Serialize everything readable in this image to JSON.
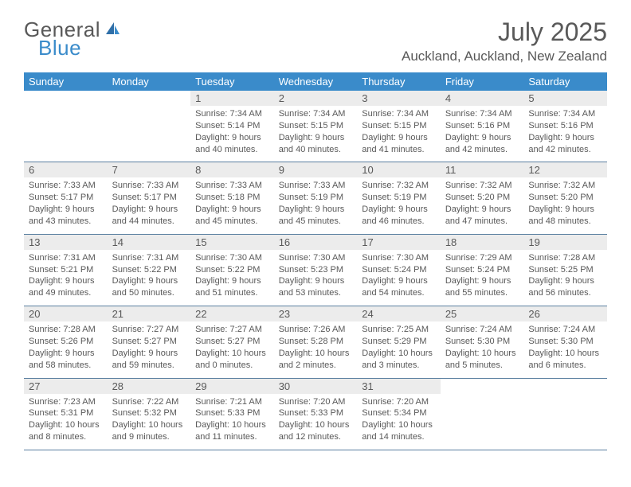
{
  "brand": {
    "part1": "General",
    "part2": "Blue"
  },
  "title": "July 2025",
  "location": "Auckland, Auckland, New Zealand",
  "colors": {
    "header_bg": "#3a8bca",
    "header_text": "#ffffff",
    "daynum_bg": "#ececec",
    "text": "#595959",
    "row_border": "#5a7fa0",
    "brand_blue": "#3a8bca",
    "brand_gray": "#595959",
    "page_bg": "#ffffff"
  },
  "weekdays": [
    "Sunday",
    "Monday",
    "Tuesday",
    "Wednesday",
    "Thursday",
    "Friday",
    "Saturday"
  ],
  "weeks": [
    [
      null,
      null,
      {
        "n": "1",
        "sr": "7:34 AM",
        "ss": "5:14 PM",
        "dl": "9 hours and 40 minutes."
      },
      {
        "n": "2",
        "sr": "7:34 AM",
        "ss": "5:15 PM",
        "dl": "9 hours and 40 minutes."
      },
      {
        "n": "3",
        "sr": "7:34 AM",
        "ss": "5:15 PM",
        "dl": "9 hours and 41 minutes."
      },
      {
        "n": "4",
        "sr": "7:34 AM",
        "ss": "5:16 PM",
        "dl": "9 hours and 42 minutes."
      },
      {
        "n": "5",
        "sr": "7:34 AM",
        "ss": "5:16 PM",
        "dl": "9 hours and 42 minutes."
      }
    ],
    [
      {
        "n": "6",
        "sr": "7:33 AM",
        "ss": "5:17 PM",
        "dl": "9 hours and 43 minutes."
      },
      {
        "n": "7",
        "sr": "7:33 AM",
        "ss": "5:17 PM",
        "dl": "9 hours and 44 minutes."
      },
      {
        "n": "8",
        "sr": "7:33 AM",
        "ss": "5:18 PM",
        "dl": "9 hours and 45 minutes."
      },
      {
        "n": "9",
        "sr": "7:33 AM",
        "ss": "5:19 PM",
        "dl": "9 hours and 45 minutes."
      },
      {
        "n": "10",
        "sr": "7:32 AM",
        "ss": "5:19 PM",
        "dl": "9 hours and 46 minutes."
      },
      {
        "n": "11",
        "sr": "7:32 AM",
        "ss": "5:20 PM",
        "dl": "9 hours and 47 minutes."
      },
      {
        "n": "12",
        "sr": "7:32 AM",
        "ss": "5:20 PM",
        "dl": "9 hours and 48 minutes."
      }
    ],
    [
      {
        "n": "13",
        "sr": "7:31 AM",
        "ss": "5:21 PM",
        "dl": "9 hours and 49 minutes."
      },
      {
        "n": "14",
        "sr": "7:31 AM",
        "ss": "5:22 PM",
        "dl": "9 hours and 50 minutes."
      },
      {
        "n": "15",
        "sr": "7:30 AM",
        "ss": "5:22 PM",
        "dl": "9 hours and 51 minutes."
      },
      {
        "n": "16",
        "sr": "7:30 AM",
        "ss": "5:23 PM",
        "dl": "9 hours and 53 minutes."
      },
      {
        "n": "17",
        "sr": "7:30 AM",
        "ss": "5:24 PM",
        "dl": "9 hours and 54 minutes."
      },
      {
        "n": "18",
        "sr": "7:29 AM",
        "ss": "5:24 PM",
        "dl": "9 hours and 55 minutes."
      },
      {
        "n": "19",
        "sr": "7:28 AM",
        "ss": "5:25 PM",
        "dl": "9 hours and 56 minutes."
      }
    ],
    [
      {
        "n": "20",
        "sr": "7:28 AM",
        "ss": "5:26 PM",
        "dl": "9 hours and 58 minutes."
      },
      {
        "n": "21",
        "sr": "7:27 AM",
        "ss": "5:27 PM",
        "dl": "9 hours and 59 minutes."
      },
      {
        "n": "22",
        "sr": "7:27 AM",
        "ss": "5:27 PM",
        "dl": "10 hours and 0 minutes."
      },
      {
        "n": "23",
        "sr": "7:26 AM",
        "ss": "5:28 PM",
        "dl": "10 hours and 2 minutes."
      },
      {
        "n": "24",
        "sr": "7:25 AM",
        "ss": "5:29 PM",
        "dl": "10 hours and 3 minutes."
      },
      {
        "n": "25",
        "sr": "7:24 AM",
        "ss": "5:30 PM",
        "dl": "10 hours and 5 minutes."
      },
      {
        "n": "26",
        "sr": "7:24 AM",
        "ss": "5:30 PM",
        "dl": "10 hours and 6 minutes."
      }
    ],
    [
      {
        "n": "27",
        "sr": "7:23 AM",
        "ss": "5:31 PM",
        "dl": "10 hours and 8 minutes."
      },
      {
        "n": "28",
        "sr": "7:22 AM",
        "ss": "5:32 PM",
        "dl": "10 hours and 9 minutes."
      },
      {
        "n": "29",
        "sr": "7:21 AM",
        "ss": "5:33 PM",
        "dl": "10 hours and 11 minutes."
      },
      {
        "n": "30",
        "sr": "7:20 AM",
        "ss": "5:33 PM",
        "dl": "10 hours and 12 minutes."
      },
      {
        "n": "31",
        "sr": "7:20 AM",
        "ss": "5:34 PM",
        "dl": "10 hours and 14 minutes."
      },
      null,
      null
    ]
  ],
  "labels": {
    "sunrise": "Sunrise:",
    "sunset": "Sunset:",
    "daylight": "Daylight:"
  }
}
